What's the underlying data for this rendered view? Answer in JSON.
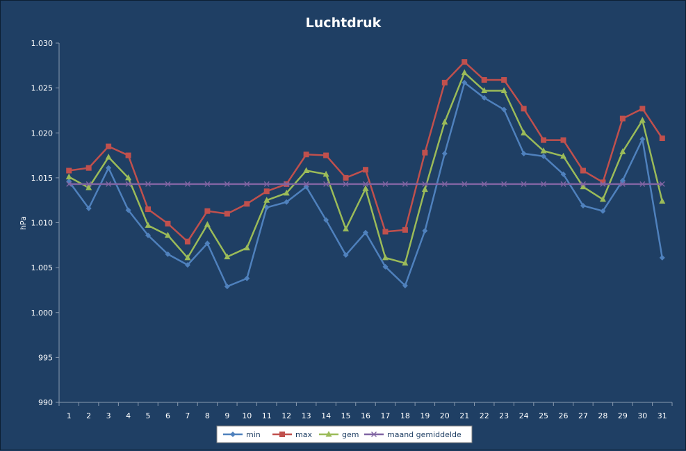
{
  "chart_data": {
    "type": "line",
    "title": "Luchtdruk",
    "xlabel": "",
    "ylabel": "hPa",
    "ylim": [
      990,
      1030
    ],
    "ytick_step": 5,
    "ytick_labels": [
      "990",
      "995",
      "1.000",
      "1.005",
      "1.010",
      "1.015",
      "1.020",
      "1.025",
      "1.030"
    ],
    "grid": false,
    "legend_position": "bottom",
    "x": [
      "1",
      "2",
      "3",
      "4",
      "5",
      "6",
      "7",
      "8",
      "9",
      "10",
      "11",
      "12",
      "13",
      "14",
      "15",
      "16",
      "17",
      "18",
      "19",
      "20",
      "21",
      "22",
      "23",
      "24",
      "25",
      "26",
      "27",
      "28",
      "29",
      "30",
      "31"
    ],
    "series": [
      {
        "name": "min",
        "color": "#4F81BD",
        "marker": "diamond",
        "values": [
          1014.6,
          1011.6,
          1016.1,
          1011.4,
          1008.6,
          1006.5,
          1005.3,
          1007.7,
          1002.9,
          1003.8,
          1011.7,
          1012.3,
          1014.0,
          1010.3,
          1006.4,
          1008.9,
          1005.1,
          1003.0,
          1009.1,
          1017.7,
          1025.6,
          1023.9,
          1022.6,
          1017.7,
          1017.4,
          1015.4,
          1011.9,
          1011.3,
          1014.7,
          1019.3,
          1006.1
        ]
      },
      {
        "name": "max",
        "color": "#C0504D",
        "marker": "square",
        "values": [
          1015.8,
          1016.1,
          1018.5,
          1017.5,
          1011.5,
          1009.9,
          1007.9,
          1011.3,
          1011.0,
          1012.1,
          1013.5,
          1014.3,
          1017.6,
          1017.5,
          1015.0,
          1015.9,
          1009.0,
          1009.2,
          1017.8,
          1025.6,
          1027.9,
          1025.9,
          1025.9,
          1022.7,
          1019.2,
          1019.2,
          1015.8,
          1014.5,
          1021.6,
          1022.7,
          1019.4
        ]
      },
      {
        "name": "gem",
        "color": "#9BBB59",
        "marker": "triangle",
        "values": [
          1015.1,
          1013.9,
          1017.3,
          1015.0,
          1009.7,
          1008.6,
          1006.1,
          1009.8,
          1006.2,
          1007.2,
          1012.5,
          1013.3,
          1015.8,
          1015.4,
          1009.3,
          1013.8,
          1006.1,
          1005.5,
          1013.7,
          1021.2,
          1026.7,
          1024.7,
          1024.7,
          1020.0,
          1018.0,
          1017.4,
          1014.0,
          1012.6,
          1017.9,
          1021.4,
          1012.4
        ]
      },
      {
        "name": "maand gemiddelde",
        "color": "#8064A2",
        "marker": "x",
        "values": [
          1014.3,
          1014.3,
          1014.3,
          1014.3,
          1014.3,
          1014.3,
          1014.3,
          1014.3,
          1014.3,
          1014.3,
          1014.3,
          1014.3,
          1014.3,
          1014.3,
          1014.3,
          1014.3,
          1014.3,
          1014.3,
          1014.3,
          1014.3,
          1014.3,
          1014.3,
          1014.3,
          1014.3,
          1014.3,
          1014.3,
          1014.3,
          1014.3,
          1014.3,
          1014.3,
          1014.3
        ]
      }
    ]
  }
}
